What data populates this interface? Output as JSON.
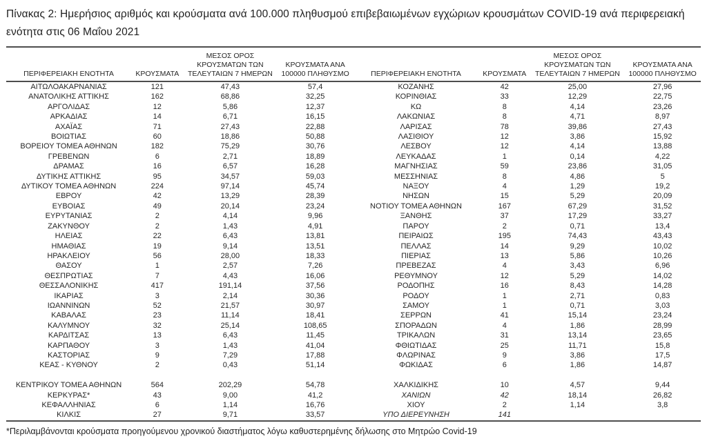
{
  "title": "Πίνακας 2:  Ημερήσιος αριθμός και κρούσματα ανά 100.000 πληθυσμού επιβεβαιωμένων εγχώριων κρουσμάτων COVID-19 ανά περιφερειακή ενότητα στις 06 Μαΐου 2021",
  "headers": {
    "region": "ΠΕΡΙΦΕΡΕΙΑΚΗ ΕΝΟΤΗΤΑ",
    "cases": "ΚΡΟΥΣΜΑΤΑ",
    "avg7": "ΜΕΣΟΣ ΟΡΟΣ ΚΡΟΥΣΜΑΤΩΝ ΤΩΝ ΤΕΛΕΥΤΑΙΩΝ 7 ΗΜΕΡΩΝ",
    "per100k": "ΚΡΟΥΣΜΑΤΑ ΑΝΑ 100000 ΠΛΗΘΥΣΜΟ"
  },
  "left_rows": [
    {
      "name": "ΑΙΤΩΛΟΑΚΑΡΝΑΝΙΑΣ",
      "cases": "121",
      "avg": "47,43",
      "per100k": "57,4"
    },
    {
      "name": "ΑΝΑΤΟΛΙΚΗΣ ΑΤΤΙΚΗΣ",
      "cases": "162",
      "avg": "68,86",
      "per100k": "32,25"
    },
    {
      "name": "ΑΡΓΟΛΙΔΑΣ",
      "cases": "12",
      "avg": "5,86",
      "per100k": "12,37"
    },
    {
      "name": "ΑΡΚΑΔΙΑΣ",
      "cases": "14",
      "avg": "6,71",
      "per100k": "16,15"
    },
    {
      "name": "ΑΧΑΪΑΣ",
      "cases": "71",
      "avg": "27,43",
      "per100k": "22,88"
    },
    {
      "name": "ΒΟΙΩΤΙΑΣ",
      "cases": "60",
      "avg": "18,86",
      "per100k": "50,88"
    },
    {
      "name": "ΒΟΡΕΙΟΥ ΤΟΜΕΑ ΑΘΗΝΩΝ",
      "cases": "182",
      "avg": "75,29",
      "per100k": "30,76"
    },
    {
      "name": "ΓΡΕΒΕΝΩΝ",
      "cases": "6",
      "avg": "2,71",
      "per100k": "18,89"
    },
    {
      "name": "ΔΡΑΜΑΣ",
      "cases": "16",
      "avg": "6,57",
      "per100k": "16,28"
    },
    {
      "name": "ΔΥΤΙΚΗΣ ΑΤΤΙΚΗΣ",
      "cases": "95",
      "avg": "34,57",
      "per100k": "59,03"
    },
    {
      "name": "ΔΥΤΙΚΟΥ ΤΟΜΕΑ ΑΘΗΝΩΝ",
      "cases": "224",
      "avg": "97,14",
      "per100k": "45,74"
    },
    {
      "name": "ΕΒΡΟΥ",
      "cases": "42",
      "avg": "13,29",
      "per100k": "28,39"
    },
    {
      "name": "ΕΥΒΟΙΑΣ",
      "cases": "49",
      "avg": "20,14",
      "per100k": "23,24"
    },
    {
      "name": "ΕΥΡΥΤΑΝΙΑΣ",
      "cases": "2",
      "avg": "4,14",
      "per100k": "9,96"
    },
    {
      "name": "ΖΑΚΥΝΘΟΥ",
      "cases": "2",
      "avg": "1,43",
      "per100k": "4,91"
    },
    {
      "name": "ΗΛΕΙΑΣ",
      "cases": "22",
      "avg": "6,43",
      "per100k": "13,81"
    },
    {
      "name": "ΗΜΑΘΙΑΣ",
      "cases": "19",
      "avg": "9,14",
      "per100k": "13,51"
    },
    {
      "name": "ΗΡΑΚΛΕΙΟΥ",
      "cases": "56",
      "avg": "28,00",
      "per100k": "18,33"
    },
    {
      "name": "ΘΑΣΟΥ",
      "cases": "1",
      "avg": "2,57",
      "per100k": "7,26"
    },
    {
      "name": "ΘΕΣΠΡΩΤΙΑΣ",
      "cases": "7",
      "avg": "4,43",
      "per100k": "16,06"
    },
    {
      "name": "ΘΕΣΣΑΛΟΝΙΚΗΣ",
      "cases": "417",
      "avg": "191,14",
      "per100k": "37,56"
    },
    {
      "name": "ΙΚΑΡΙΑΣ",
      "cases": "3",
      "avg": "2,14",
      "per100k": "30,36"
    },
    {
      "name": "ΙΩΑΝΝΙΝΩΝ",
      "cases": "52",
      "avg": "21,57",
      "per100k": "30,97"
    },
    {
      "name": "ΚΑΒΑΛΑΣ",
      "cases": "23",
      "avg": "11,14",
      "per100k": "18,41"
    },
    {
      "name": "ΚΑΛΥΜΝΟΥ",
      "cases": "32",
      "avg": "25,14",
      "per100k": "108,65"
    },
    {
      "name": "ΚΑΡΔΙΤΣΑΣ",
      "cases": "13",
      "avg": "6,43",
      "per100k": "11,45"
    },
    {
      "name": "ΚΑΡΠΑΘΟΥ",
      "cases": "3",
      "avg": "1,43",
      "per100k": "41,04"
    },
    {
      "name": "ΚΑΣΤΟΡΙΑΣ",
      "cases": "9",
      "avg": "7,29",
      "per100k": "17,88"
    },
    {
      "name": "ΚΕΑΣ - ΚΥΘΝΟΥ",
      "cases": "2",
      "avg": "0,43",
      "per100k": "51,14"
    },
    {
      "name": "",
      "cases": "",
      "avg": "",
      "per100k": ""
    },
    {
      "name": "ΚΕΝΤΡΙΚΟΥ ΤΟΜΕΑ ΑΘΗΝΩΝ",
      "cases": "564",
      "avg": "202,29",
      "per100k": "54,78"
    },
    {
      "name": "ΚΕΡΚΥΡΑΣ*",
      "cases": "43",
      "avg": "9,00",
      "per100k": "41,2"
    },
    {
      "name": "ΚΕΦΑΛΛΗΝΙΑΣ",
      "cases": "6",
      "avg": "1,14",
      "per100k": "16,76"
    },
    {
      "name": "ΚΙΛΚΙΣ",
      "cases": "27",
      "avg": "9,71",
      "per100k": "33,57"
    }
  ],
  "right_rows": [
    {
      "name": "ΚΟΖΑΝΗΣ",
      "cases": "42",
      "avg": "25,00",
      "per100k": "27,96"
    },
    {
      "name": "ΚΟΡΙΝΘΙΑΣ",
      "cases": "33",
      "avg": "12,29",
      "per100k": "22,75"
    },
    {
      "name": "ΚΩ",
      "cases": "8",
      "avg": "4,14",
      "per100k": "23,26"
    },
    {
      "name": "ΛΑΚΩΝΙΑΣ",
      "cases": "8",
      "avg": "4,71",
      "per100k": "8,97"
    },
    {
      "name": "ΛΑΡΙΣΑΣ",
      "cases": "78",
      "avg": "39,86",
      "per100k": "27,43"
    },
    {
      "name": "ΛΑΣΙΘΙΟΥ",
      "cases": "12",
      "avg": "3,86",
      "per100k": "15,92"
    },
    {
      "name": "ΛΕΣΒΟΥ",
      "cases": "12",
      "avg": "4,14",
      "per100k": "13,88"
    },
    {
      "name": "ΛΕΥΚΑΔΑΣ",
      "cases": "1",
      "avg": "0,14",
      "per100k": "4,22"
    },
    {
      "name": "ΜΑΓΝΗΣΙΑΣ",
      "cases": "59",
      "avg": "23,86",
      "per100k": "31,05"
    },
    {
      "name": "ΜΕΣΣΗΝΙΑΣ",
      "cases": "8",
      "avg": "4,86",
      "per100k": "5"
    },
    {
      "name": "ΝΑΞΟΥ",
      "cases": "4",
      "avg": "1,29",
      "per100k": "19,2"
    },
    {
      "name": "ΝΗΣΩΝ",
      "cases": "15",
      "avg": "5,29",
      "per100k": "20,09"
    },
    {
      "name": "ΝΟΤΙΟΥ ΤΟΜΕΑ ΑΘΗΝΩΝ",
      "cases": "167",
      "avg": "67,29",
      "per100k": "31,52"
    },
    {
      "name": "ΞΑΝΘΗΣ",
      "cases": "37",
      "avg": "17,29",
      "per100k": "33,27"
    },
    {
      "name": "ΠΑΡΟΥ",
      "cases": "2",
      "avg": "0,71",
      "per100k": "13,4"
    },
    {
      "name": "ΠΕΙΡΑΙΩΣ",
      "cases": "195",
      "avg": "74,43",
      "per100k": "43,43"
    },
    {
      "name": "ΠΕΛΛΑΣ",
      "cases": "14",
      "avg": "9,29",
      "per100k": "10,02"
    },
    {
      "name": "ΠΙΕΡΙΑΣ",
      "cases": "13",
      "avg": "5,86",
      "per100k": "10,26"
    },
    {
      "name": "ΠΡΕΒΕΖΑΣ",
      "cases": "4",
      "avg": "3,43",
      "per100k": "6,96"
    },
    {
      "name": "ΡΕΘΥΜΝΟΥ",
      "cases": "12",
      "avg": "5,29",
      "per100k": "14,02"
    },
    {
      "name": "ΡΟΔΟΠΗΣ",
      "cases": "16",
      "avg": "8,43",
      "per100k": "14,28"
    },
    {
      "name": "ΡΟΔΟΥ",
      "cases": "1",
      "avg": "2,71",
      "per100k": "0,83"
    },
    {
      "name": "ΣΑΜΟΥ",
      "cases": "1",
      "avg": "0,71",
      "per100k": "3,03"
    },
    {
      "name": "ΣΕΡΡΩΝ",
      "cases": "41",
      "avg": "15,14",
      "per100k": "23,24"
    },
    {
      "name": "ΣΠΟΡΑΔΩΝ",
      "cases": "4",
      "avg": "1,86",
      "per100k": "28,99"
    },
    {
      "name": "ΤΡΙΚΑΛΩΝ",
      "cases": "31",
      "avg": "13,14",
      "per100k": "23,65"
    },
    {
      "name": "ΦΘΙΩΤΙΔΑΣ",
      "cases": "25",
      "avg": "11,71",
      "per100k": "15,8"
    },
    {
      "name": "ΦΛΩΡΙΝΑΣ",
      "cases": "9",
      "avg": "3,86",
      "per100k": "17,5"
    },
    {
      "name": "ΦΩΚΙΔΑΣ",
      "cases": "6",
      "avg": "1,86",
      "per100k": "14,87"
    },
    {
      "name": "",
      "cases": "",
      "avg": "",
      "per100k": ""
    },
    {
      "name": "ΧΑΛΚΙΔΙΚΗΣ",
      "cases": "10",
      "avg": "4,57",
      "per100k": "9,44"
    },
    {
      "name": "ΧΑΝΙΩΝ",
      "cases": "42",
      "avg": "18,14",
      "per100k": "26,82",
      "italic": true
    },
    {
      "name": "ΧΙΟΥ",
      "cases": "2",
      "avg": "1,14",
      "per100k": "3,8"
    },
    {
      "name": "ΥΠΟ ΔΙΕΡΕΥΝΗΣΗ",
      "cases": "141",
      "avg": "",
      "per100k": "",
      "italic": true
    }
  ],
  "footnote": "*Περιλαμβάνονται κρούσματα προηγούμενου χρονικού διαστήματος λόγω καθυστερημένης δήλωσης στο Μητρώο Covid-19"
}
